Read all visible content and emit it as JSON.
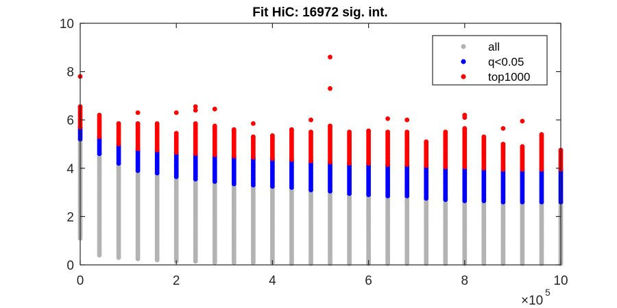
{
  "chart_data": {
    "type": "scatter",
    "title": "Fit HiC: 16972 sig. int.",
    "xlabel": "",
    "ylabel": "",
    "x_exponent_label": "×10",
    "x_exponent_power": "5",
    "xlim": [
      0,
      10
    ],
    "ylim": [
      0,
      10
    ],
    "x_tick_labels": [
      "0",
      "2",
      "4",
      "6",
      "8",
      "10"
    ],
    "y_tick_labels": [
      "0",
      "2",
      "4",
      "6",
      "8",
      "10"
    ],
    "x_positions": [
      0,
      0.4,
      0.8,
      1.2,
      1.6,
      2.0,
      2.4,
      2.8,
      3.2,
      3.6,
      4.0,
      4.4,
      4.8,
      5.2,
      5.6,
      6.0,
      6.4,
      6.8,
      7.2,
      7.6,
      8.0,
      8.4,
      8.8,
      9.2,
      9.6,
      10.0
    ],
    "grid": false,
    "legend_placement": "top-right",
    "series": [
      {
        "name": "all",
        "color": "#b3b3b3",
        "y_min": [
          1.1,
          0.4,
          0.3,
          0.25,
          0.2,
          0.15,
          0.15,
          0.1,
          0.1,
          0.1,
          0.1,
          0.05,
          0.05,
          0.05,
          0.05,
          0.05,
          0.05,
          0.05,
          0.05,
          0.05,
          0.05,
          0.05,
          0.05,
          0.05,
          0.05,
          0.05
        ],
        "y_max": [
          5.2,
          4.6,
          4.2,
          3.9,
          3.8,
          3.65,
          3.55,
          3.45,
          3.35,
          3.3,
          3.25,
          3.2,
          3.1,
          3.05,
          2.95,
          2.9,
          2.85,
          2.85,
          2.75,
          2.7,
          2.65,
          2.65,
          2.6,
          2.6,
          2.6,
          2.6
        ]
      },
      {
        "name": "q<0.05",
        "color": "#0000ff",
        "y_min": [
          5.2,
          4.6,
          4.2,
          3.9,
          3.8,
          3.65,
          3.55,
          3.45,
          3.35,
          3.3,
          3.25,
          3.2,
          3.1,
          3.05,
          2.95,
          2.9,
          2.85,
          2.85,
          2.75,
          2.7,
          2.65,
          2.65,
          2.6,
          2.6,
          2.6,
          2.6
        ],
        "y_max": [
          5.7,
          5.3,
          5.0,
          4.8,
          4.75,
          4.65,
          4.6,
          4.55,
          4.5,
          4.45,
          4.4,
          4.35,
          4.3,
          4.25,
          4.2,
          4.2,
          4.15,
          4.15,
          4.1,
          4.05,
          4.05,
          4.0,
          3.95,
          3.95,
          3.95,
          3.95
        ]
      },
      {
        "name": "top1000",
        "color": "#ff0000",
        "y_min": [
          5.7,
          5.3,
          5.0,
          4.8,
          4.75,
          4.65,
          4.6,
          4.55,
          4.5,
          4.45,
          4.4,
          4.35,
          4.3,
          4.25,
          4.2,
          4.2,
          4.15,
          4.15,
          4.1,
          4.05,
          4.05,
          4.0,
          3.95,
          3.95,
          3.95,
          3.95
        ],
        "y_max": [
          6.55,
          6.2,
          5.85,
          5.85,
          5.85,
          5.45,
          5.85,
          5.75,
          5.6,
          5.3,
          5.35,
          5.6,
          5.5,
          5.75,
          5.5,
          5.55,
          5.5,
          5.5,
          5.1,
          5.5,
          5.65,
          5.3,
          5.0,
          4.9,
          5.35,
          4.75
        ],
        "outliers": [
          [
            0,
            7.8
          ],
          [
            1.2,
            6.3
          ],
          [
            2.0,
            6.3
          ],
          [
            2.4,
            6.55
          ],
          [
            2.4,
            6.4
          ],
          [
            2.8,
            6.45
          ],
          [
            3.6,
            5.85
          ],
          [
            4.8,
            6.0
          ],
          [
            5.2,
            8.6
          ],
          [
            5.2,
            7.3
          ],
          [
            6.4,
            6.05
          ],
          [
            6.8,
            6.0
          ],
          [
            8.0,
            6.2
          ],
          [
            8.0,
            6.1
          ],
          [
            8.8,
            5.65
          ],
          [
            9.2,
            5.95
          ],
          [
            9.6,
            5.4
          ]
        ]
      }
    ]
  }
}
